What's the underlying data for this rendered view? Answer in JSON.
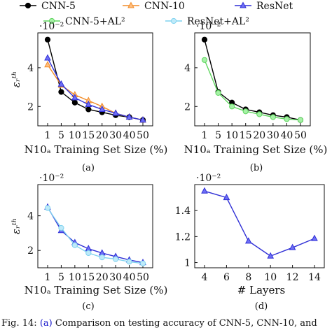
{
  "legend": {
    "entries": [
      {
        "name": "CNN-5",
        "color": "#000000",
        "marker": "circle",
        "fill": "#000000"
      },
      {
        "name": "CNN-10",
        "color": "#f28c28",
        "marker": "triangle",
        "fill": "#ffbf80"
      },
      {
        "name": "ResNet",
        "color": "#2f2fd6",
        "marker": "triangle",
        "fill": "#6f6ff5"
      },
      {
        "name": "CNN-5+AL²",
        "color": "#5ed65e",
        "marker": "circle",
        "fill": "#a6f0a6"
      },
      {
        "name": "ResNet+AL²",
        "color": "#7fd2ef",
        "marker": "circle",
        "fill": "#bfeaf9"
      }
    ]
  },
  "chart_data": [
    {
      "panel": "(a)",
      "type": "line",
      "x_tick_labels": [
        "1",
        "5",
        "10",
        "15",
        "20",
        "30",
        "40",
        "50"
      ],
      "xlabel": "N10ₐ Training Set Size (%)",
      "ylabel": "εᵣᵗʰ",
      "y_scale_label": "·10⁻²",
      "y_ticks": [
        2,
        4
      ],
      "ylim": [
        1.0,
        5.8
      ],
      "series": [
        {
          "name": "CNN-5",
          "values": [
            5.45,
            2.75,
            2.2,
            1.85,
            1.7,
            1.55,
            1.45,
            1.3
          ]
        },
        {
          "name": "CNN-10",
          "values": [
            4.15,
            3.1,
            2.6,
            2.3,
            2.0,
            1.65,
            1.45,
            1.3
          ]
        },
        {
          "name": "ResNet",
          "values": [
            4.5,
            3.15,
            2.45,
            2.1,
            1.85,
            1.65,
            1.45,
            1.3
          ]
        }
      ]
    },
    {
      "panel": "(b)",
      "type": "line",
      "x_tick_labels": [
        "1",
        "5",
        "10",
        "15",
        "20",
        "30",
        "40",
        "50"
      ],
      "xlabel": "N10ₐ Training Set Size (%)",
      "ylabel": "",
      "y_scale_label": "·10⁻²",
      "y_ticks": [
        2,
        4
      ],
      "ylim": [
        1.0,
        5.8
      ],
      "series": [
        {
          "name": "CNN-5",
          "values": [
            5.45,
            2.75,
            2.2,
            1.85,
            1.7,
            1.55,
            1.45,
            1.3
          ]
        },
        {
          "name": "CNN-5+AL²",
          "values": [
            4.4,
            2.7,
            2.0,
            1.75,
            1.6,
            1.45,
            1.35,
            1.3
          ]
        }
      ]
    },
    {
      "panel": "(c)",
      "type": "line",
      "x_tick_labels": [
        "1",
        "5",
        "10",
        "15",
        "20",
        "30",
        "40",
        "50"
      ],
      "xlabel": "N10ₐ Training Set Size (%)",
      "ylabel": "εᵣᵗʰ",
      "y_scale_label": "·10⁻²",
      "y_ticks": [
        2,
        4
      ],
      "ylim": [
        1.0,
        5.8
      ],
      "series": [
        {
          "name": "ResNet",
          "values": [
            4.5,
            3.15,
            2.45,
            2.1,
            1.85,
            1.65,
            1.45,
            1.3
          ]
        },
        {
          "name": "ResNet+AL²",
          "values": [
            4.45,
            3.3,
            2.3,
            1.85,
            1.6,
            1.5,
            1.35,
            1.25
          ]
        }
      ]
    },
    {
      "panel": "(d)",
      "type": "line",
      "x": [
        4,
        6,
        8,
        10,
        12,
        14
      ],
      "x_tick_labels": [
        "4",
        "6",
        "8",
        "10",
        "12",
        "14"
      ],
      "xlabel": "# Layers",
      "ylabel": "",
      "y_scale_label": "·10⁻²",
      "y_ticks": [
        1,
        1.2,
        1.4
      ],
      "y_tick_labels": [
        "1",
        "1.2",
        "1.4"
      ],
      "ylim": [
        0.96,
        1.6
      ],
      "series": [
        {
          "name": "ResNet",
          "values": [
            1.55,
            1.5,
            1.165,
            1.05,
            1.115,
            1.185
          ]
        }
      ]
    }
  ],
  "caption": {
    "prefix": "Fig. 14: ",
    "ref": "(a)",
    "text": " Comparison on testing accuracy of CNN-5, CNN-10, and"
  }
}
